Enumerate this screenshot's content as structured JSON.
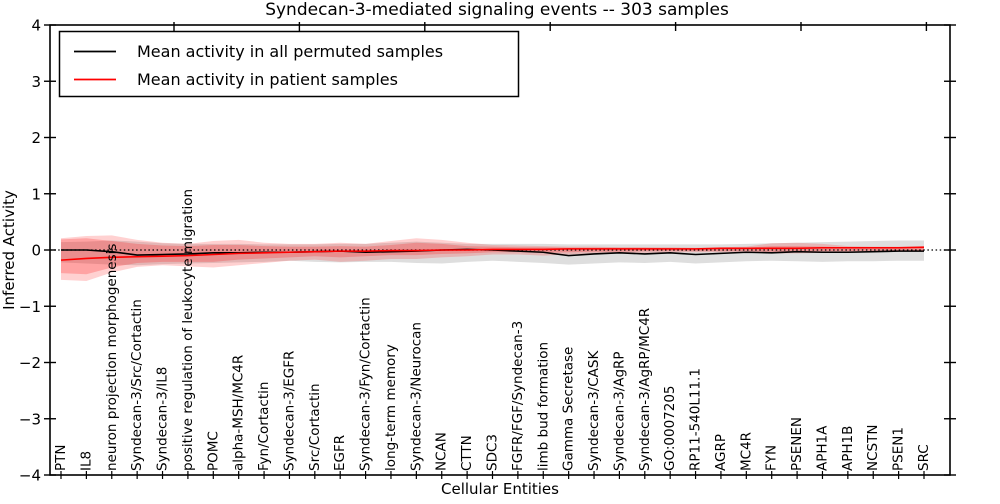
{
  "chart_data": {
    "type": "line",
    "title": "Syndecan-3-mediated signaling events -- 303 samples",
    "xlabel": "Cellular Entities",
    "ylabel": "Inferred Activity",
    "ylim": [
      -4,
      4
    ],
    "yticks": [
      4,
      3,
      2,
      1,
      0,
      -1,
      -2,
      -3,
      -4
    ],
    "ytick_labels": [
      "4",
      "3",
      "2",
      "1",
      "0",
      "−1",
      "−2",
      "−3",
      "−4"
    ],
    "grid": false,
    "legend_position": "upper left",
    "background_color": "#ffffff",
    "spine_color": "#000000",
    "categories": [
      "PTN",
      "IL8",
      "neuron projection morphogenesis",
      "Syndecan-3/Src/Cortactin",
      "Syndecan-3/IL8",
      "positive regulation of leukocyte migration",
      "POMC",
      "alpha-MSH/MC4R",
      "Fyn/Cortactin",
      "Syndecan-3/EGFR",
      "Src/Cortactin",
      "EGFR",
      "Syndecan-3/Fyn/Cortactin",
      "long-term memory",
      "Syndecan-3/Neurocan",
      "NCAN",
      "CTTN",
      "SDC3",
      "FGFR/FGF/Syndecan-3",
      "limb bud formation",
      "Gamma Secretase",
      "Syndecan-3/CASK",
      "Syndecan-3/AgRP",
      "Syndecan-3/AgRP/MC4R",
      "GO:0007205",
      "RP11-540L11.1",
      "AGRP",
      "MC4R",
      "FYN",
      "PSENEN",
      "APH1A",
      "APH1B",
      "NCSTN",
      "PSEN1",
      "SRC"
    ],
    "baseline": {
      "value": 0,
      "color": "#000000",
      "style": "dotted"
    },
    "series": [
      {
        "name": "Mean activity in all permuted samples",
        "color": "#000000",
        "style": "solid",
        "values": [
          0.0,
          0.0,
          -0.03,
          -0.09,
          -0.08,
          -0.07,
          -0.05,
          -0.05,
          -0.04,
          -0.04,
          -0.03,
          -0.02,
          -0.04,
          -0.03,
          -0.02,
          0.0,
          0.01,
          0.0,
          -0.02,
          -0.04,
          -0.1,
          -0.07,
          -0.05,
          -0.07,
          -0.05,
          -0.08,
          -0.06,
          -0.04,
          -0.05,
          -0.03,
          -0.04,
          -0.04,
          -0.03,
          -0.02,
          -0.02
        ]
      },
      {
        "name": "Mean activity in patient samples",
        "color": "#ff0000",
        "style": "solid",
        "values": [
          -0.18,
          -0.15,
          -0.13,
          -0.12,
          -0.11,
          -0.1,
          -0.08,
          -0.06,
          -0.05,
          -0.04,
          -0.03,
          -0.02,
          -0.02,
          -0.01,
          -0.01,
          0.0,
          0.0,
          0.01,
          0.01,
          0.01,
          0.02,
          0.02,
          0.02,
          0.02,
          0.02,
          0.02,
          0.03,
          0.03,
          0.03,
          0.03,
          0.04,
          0.04,
          0.04,
          0.04,
          0.05
        ]
      }
    ],
    "bands": [
      {
        "name": "permuted-samples-range",
        "color": "#000000",
        "opacity": 0.13,
        "top": [
          0.14,
          0.15,
          0.17,
          0.15,
          0.12,
          0.11,
          0.11,
          0.11,
          0.1,
          0.1,
          0.1,
          0.11,
          0.11,
          0.13,
          0.15,
          0.13,
          0.11,
          0.11,
          0.11,
          0.11,
          0.1,
          0.1,
          0.1,
          0.1,
          0.1,
          0.1,
          0.1,
          0.11,
          0.12,
          0.13,
          0.14,
          0.15,
          0.16,
          0.17,
          0.17
        ],
        "bottom": [
          -0.22,
          -0.24,
          -0.26,
          -0.27,
          -0.25,
          -0.24,
          -0.23,
          -0.22,
          -0.21,
          -0.19,
          -0.21,
          -0.22,
          -0.21,
          -0.21,
          -0.23,
          -0.24,
          -0.21,
          -0.19,
          -0.21,
          -0.23,
          -0.26,
          -0.24,
          -0.22,
          -0.23,
          -0.21,
          -0.24,
          -0.22,
          -0.2,
          -0.19,
          -0.2,
          -0.21,
          -0.2,
          -0.2,
          -0.19,
          -0.19
        ]
      },
      {
        "name": "patient-samples-range-outer",
        "color": "#ff0000",
        "opacity": 0.18,
        "top": [
          0.21,
          0.25,
          0.26,
          0.18,
          0.13,
          0.11,
          0.16,
          0.18,
          0.13,
          0.11,
          0.11,
          0.13,
          0.11,
          0.16,
          0.21,
          0.18,
          0.13,
          0.09,
          0.08,
          0.07,
          0.06,
          0.06,
          0.05,
          0.05,
          0.05,
          0.04,
          0.05,
          0.06,
          0.12,
          0.13,
          0.11,
          0.07,
          0.06,
          0.06,
          0.06
        ],
        "bottom": [
          -0.53,
          -0.55,
          -0.4,
          -0.3,
          -0.27,
          -0.29,
          -0.31,
          -0.27,
          -0.23,
          -0.19,
          -0.17,
          -0.21,
          -0.19,
          -0.16,
          -0.16,
          -0.13,
          -0.11,
          -0.08,
          -0.08,
          -0.1,
          -0.08,
          -0.06,
          -0.05,
          -0.05,
          -0.04,
          -0.04,
          -0.04,
          -0.04,
          -0.06,
          -0.06,
          -0.05,
          -0.04,
          -0.03,
          -0.03,
          -0.03
        ]
      },
      {
        "name": "patient-samples-range-inner",
        "color": "#ff0000",
        "opacity": 0.22,
        "top": [
          0.19,
          0.21,
          0.16,
          0.11,
          0.08,
          0.07,
          0.09,
          0.09,
          0.07,
          0.06,
          0.06,
          0.07,
          0.06,
          0.09,
          0.13,
          0.11,
          0.07,
          0.06,
          0.05,
          0.05,
          0.04,
          0.04,
          0.04,
          0.04,
          0.03,
          0.03,
          0.04,
          0.04,
          0.07,
          0.07,
          0.06,
          0.05,
          0.05,
          0.05,
          0.05
        ],
        "bottom": [
          -0.41,
          -0.43,
          -0.31,
          -0.23,
          -0.21,
          -0.21,
          -0.21,
          -0.17,
          -0.15,
          -0.13,
          -0.11,
          -0.13,
          -0.11,
          -0.09,
          -0.09,
          -0.07,
          -0.06,
          -0.04,
          -0.04,
          -0.05,
          -0.04,
          -0.03,
          -0.03,
          -0.02,
          -0.02,
          -0.02,
          -0.02,
          -0.02,
          -0.03,
          -0.03,
          -0.02,
          -0.02,
          -0.01,
          -0.01,
          -0.01
        ]
      }
    ],
    "legend": [
      {
        "label": "Mean activity in all permuted samples",
        "color": "#000000"
      },
      {
        "label": "Mean activity in patient samples",
        "color": "#ff0000"
      }
    ]
  }
}
